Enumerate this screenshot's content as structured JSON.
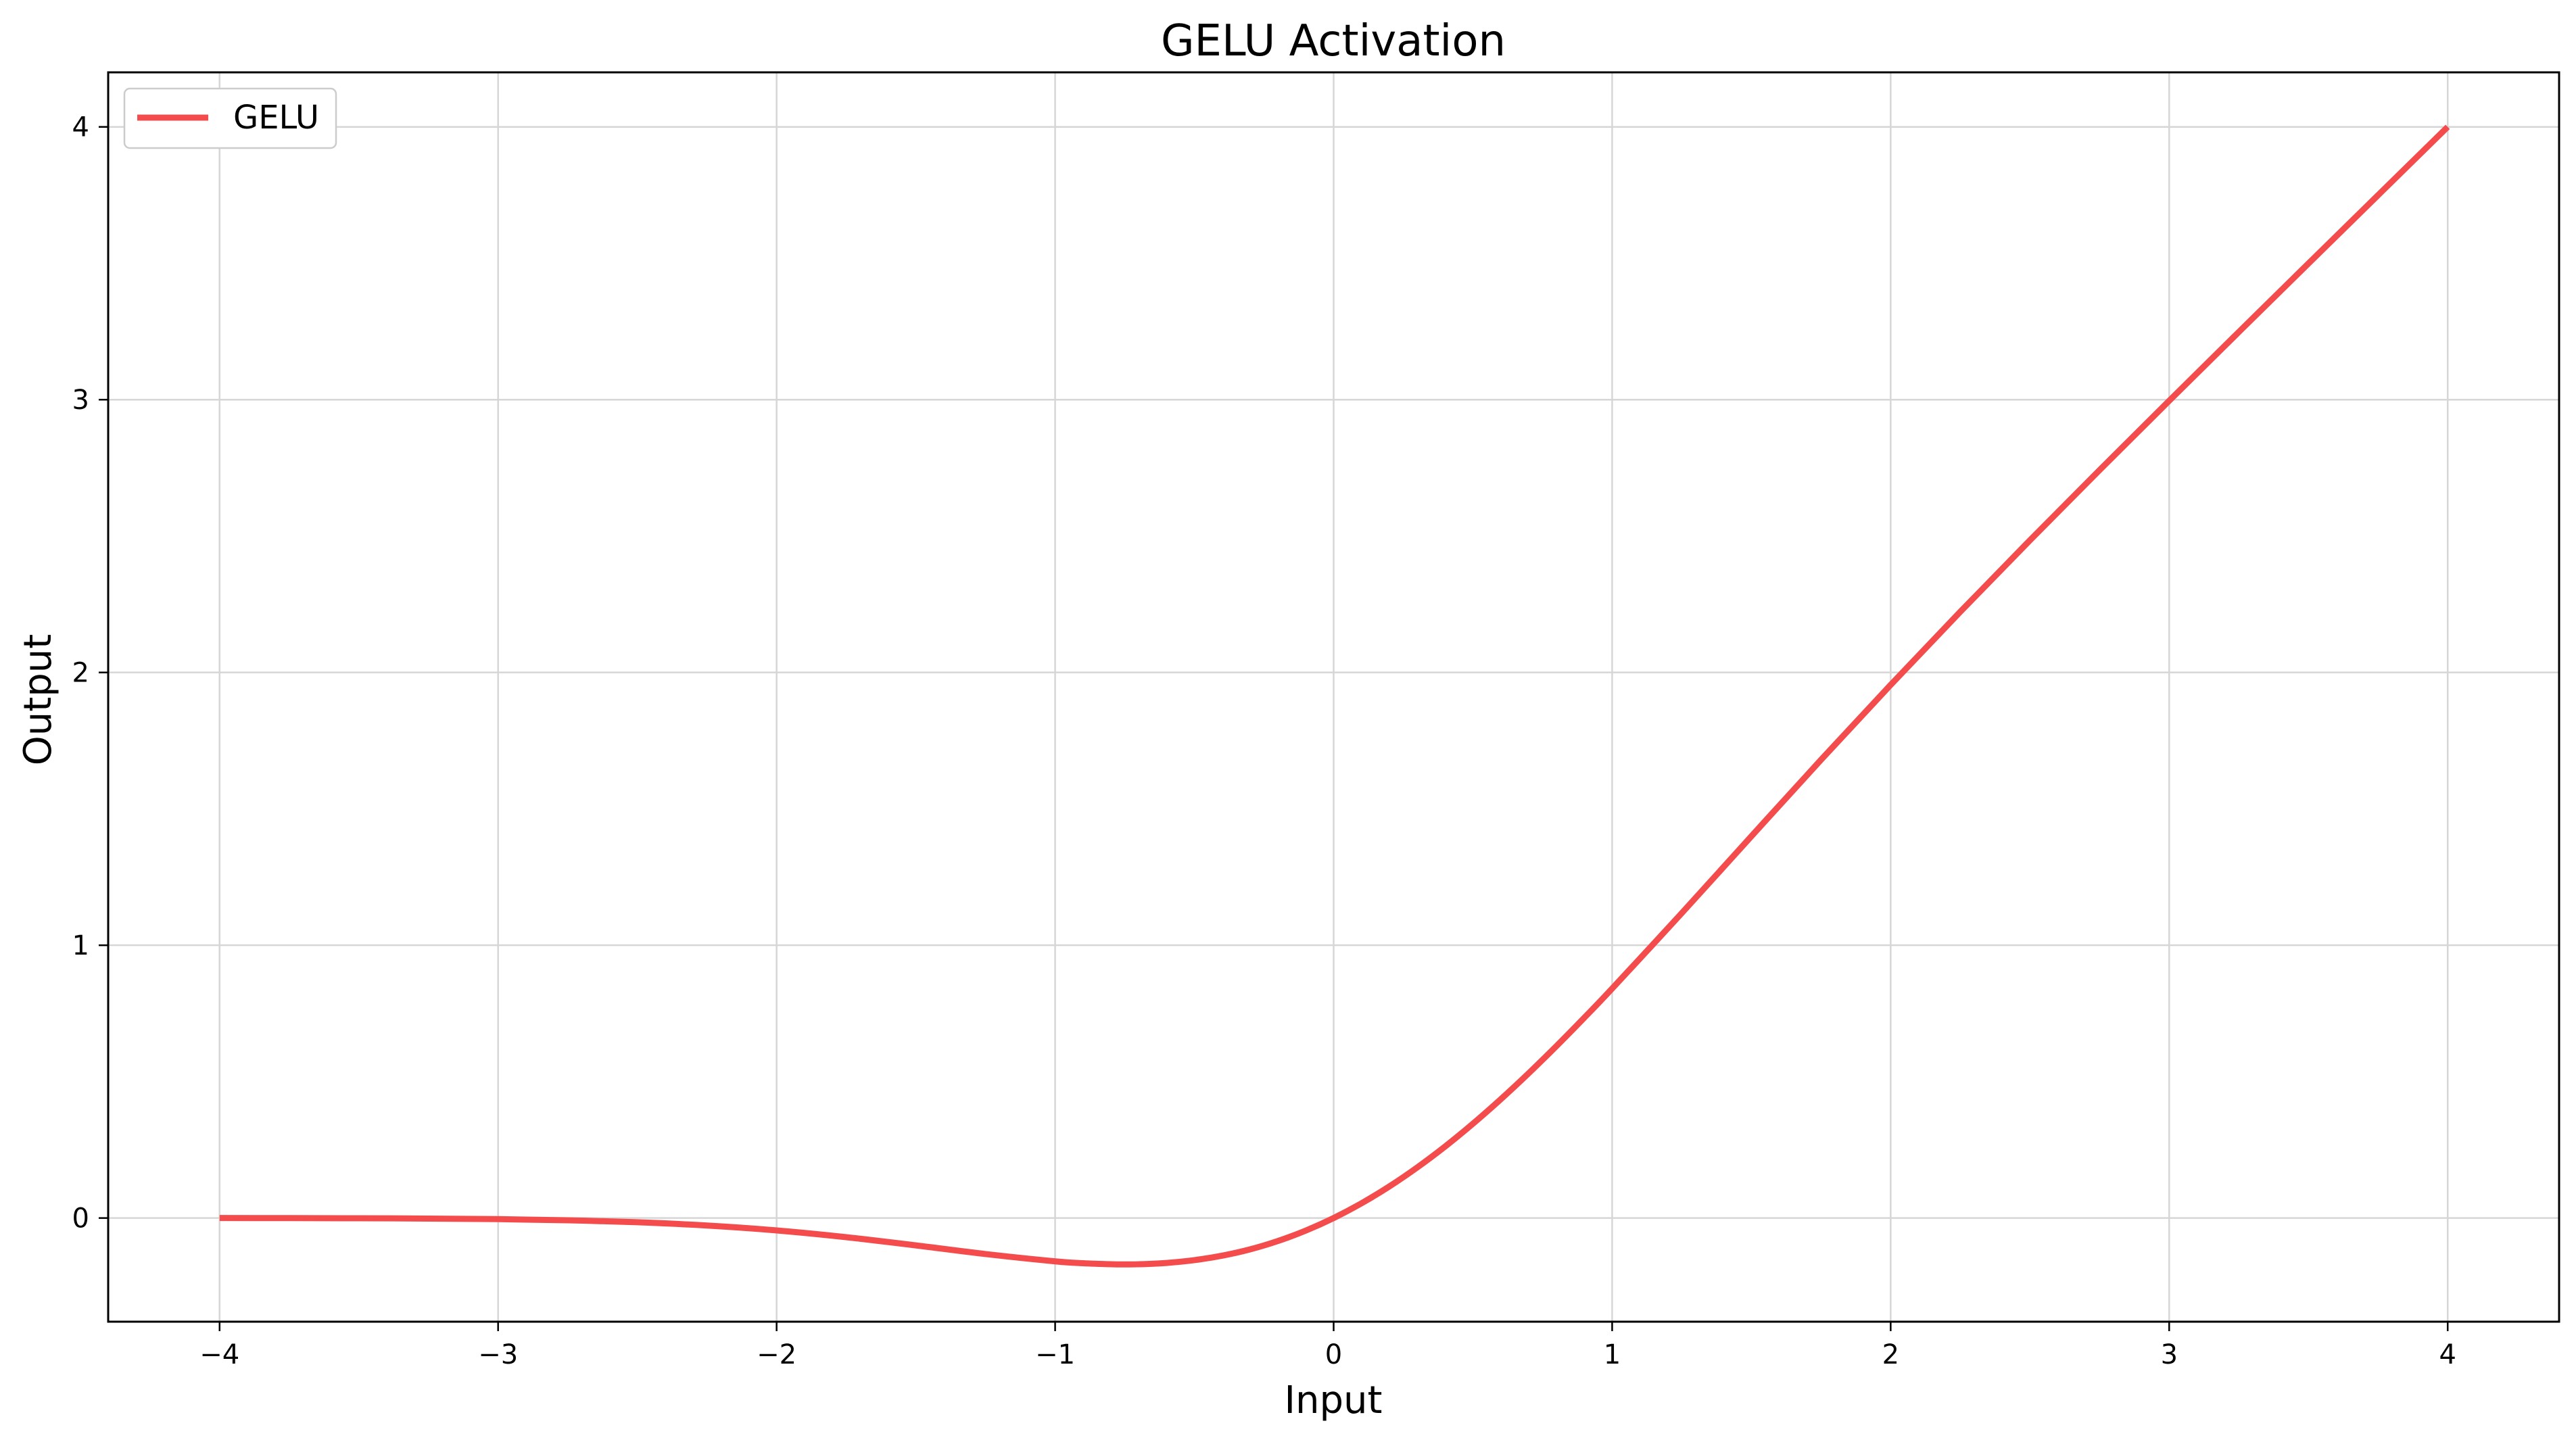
{
  "chart_data": {
    "type": "line",
    "title": "GELU Activation",
    "xlabel": "Input",
    "ylabel": "Output",
    "xlim": [
      -4.4,
      4.4
    ],
    "ylim": [
      -0.38,
      4.2
    ],
    "xticks": [
      -4,
      -3,
      -2,
      -1,
      0,
      1,
      2,
      3,
      4
    ],
    "xtick_labels": [
      "−4",
      "−3",
      "−2",
      "−1",
      "0",
      "1",
      "2",
      "3",
      "4"
    ],
    "yticks": [
      0,
      1,
      2,
      3,
      4
    ],
    "ytick_labels": [
      "0",
      "1",
      "2",
      "3",
      "4"
    ],
    "grid": true,
    "legend": {
      "position": "top-left",
      "entries": [
        "GELU"
      ]
    },
    "series": [
      {
        "name": "GELU",
        "color": "#f44c4c",
        "x": [
          -4,
          -3.75,
          -3.5,
          -3.25,
          -3,
          -2.75,
          -2.5,
          -2.25,
          -2,
          -1.75,
          -1.5,
          -1.25,
          -1,
          -0.9,
          -0.8,
          -0.75,
          -0.7,
          -0.6,
          -0.5,
          -0.4,
          -0.3,
          -0.2,
          -0.1,
          0,
          0.1,
          0.2,
          0.3,
          0.4,
          0.5,
          0.6,
          0.7,
          0.8,
          0.9,
          1,
          1.25,
          1.5,
          1.75,
          2,
          2.25,
          2.5,
          2.75,
          3,
          3.25,
          3.5,
          3.75,
          4
        ],
        "y": [
          0.0,
          -0.0003,
          -0.0008,
          -0.0019,
          -0.004,
          -0.0082,
          -0.0155,
          -0.0275,
          -0.0454,
          -0.0702,
          -0.1002,
          -0.132,
          -0.1587,
          -0.1657,
          -0.1695,
          -0.17,
          -0.1695,
          -0.1646,
          -0.1543,
          -0.1379,
          -0.1148,
          -0.0841,
          -0.046,
          0.0,
          0.054,
          0.1159,
          0.1854,
          0.2621,
          0.3457,
          0.4354,
          0.5305,
          0.6305,
          0.7343,
          0.8413,
          1.1179,
          1.3996,
          1.6799,
          1.9546,
          2.2225,
          2.4845,
          2.7418,
          2.996,
          3.2481,
          3.4992,
          3.7497,
          4.0
        ]
      }
    ]
  }
}
